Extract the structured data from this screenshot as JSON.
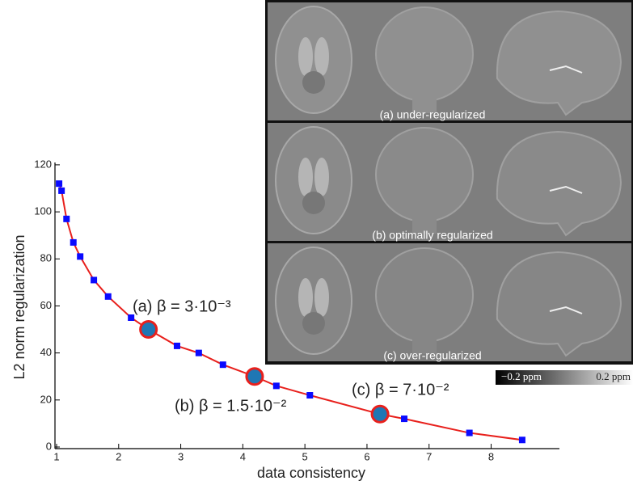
{
  "chart_data": {
    "type": "line",
    "x_label": "data consistency",
    "y_label": "L2 norm regularization",
    "x": [
      1.04,
      1.08,
      1.16,
      1.27,
      1.38,
      1.6,
      1.83,
      2.2,
      2.48,
      2.94,
      3.29,
      3.68,
      4.19,
      4.54,
      5.08,
      6.21,
      6.6,
      7.65,
      8.5
    ],
    "series": [
      {
        "color": "#0a0aff",
        "line_color": "#e8201c",
        "values": [
          112,
          109,
          97,
          87,
          81,
          71,
          64,
          55,
          50,
          43,
          40,
          35,
          30,
          26,
          22,
          14,
          12,
          6,
          3
        ],
        "marker": [
          "square",
          "square",
          "square",
          "square",
          "square",
          "square",
          "square",
          "square",
          "circle",
          "square",
          "square",
          "square",
          "circle",
          "square",
          "square",
          "circle",
          "square",
          "square",
          "square"
        ]
      }
    ],
    "highlight_color": "#1f77b4",
    "annotations": [
      "(a) β = 3·10⁻³",
      "(b) β = 1.5·10⁻²",
      "(c) β = 7·10⁻²"
    ],
    "xlim": [
      1,
      9.1
    ],
    "xticks": [
      1,
      2,
      3,
      4,
      5,
      6,
      7,
      8
    ],
    "ylim": [
      0,
      121
    ],
    "yticks": [
      0,
      20,
      40,
      60,
      80,
      100,
      120
    ]
  },
  "panels": [
    {
      "label": "(a) under-regularized"
    },
    {
      "label": "(b) optimally regularized"
    },
    {
      "label": "(c) over-regularized"
    }
  ],
  "colorbar": {
    "min_label": "−0.2 ppm",
    "max_label": "0.2 ppm"
  }
}
